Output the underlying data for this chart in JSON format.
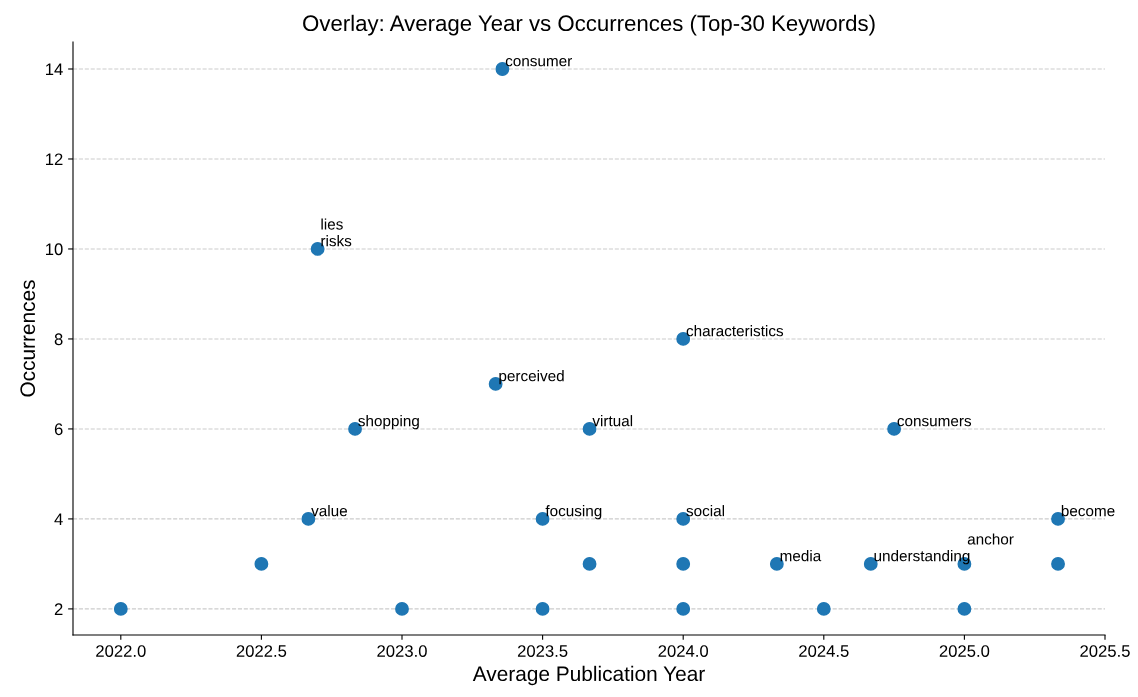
{
  "chart_data": {
    "type": "scatter",
    "title": "Overlay: Average Year vs Occurrences (Top-30 Keywords)",
    "xlabel": "Average Publication Year",
    "ylabel": "Occurrences",
    "x": [
      2022.0,
      2022.5,
      2022.667,
      2022.7,
      2022.833,
      2023.0,
      2023.357,
      2023.333,
      2023.5,
      2023.5,
      2023.667,
      2023.667,
      2024.0,
      2024.0,
      2024.0,
      2024.0,
      2024.333,
      2024.5,
      2024.667,
      2024.75,
      2025.0,
      2025.0,
      2025.333,
      2025.333
    ],
    "values": [
      2,
      3,
      4,
      10,
      6,
      2,
      14,
      7,
      4,
      2,
      6,
      3,
      8,
      4,
      3,
      2,
      3,
      2,
      3,
      6,
      3,
      2,
      4,
      3
    ],
    "color": "#1f77b4",
    "marker": "circle",
    "xlim": [
      2021.83,
      2025.5
    ],
    "xticks": [
      {
        "value": 2022.0,
        "label": "2022.0"
      },
      {
        "value": 2022.5,
        "label": "2022.5"
      },
      {
        "value": 2023.0,
        "label": "2023.0"
      },
      {
        "value": 2023.5,
        "label": "2023.5"
      },
      {
        "value": 2024.0,
        "label": "2024.0"
      },
      {
        "value": 2024.5,
        "label": "2024.5"
      },
      {
        "value": 2025.0,
        "label": "2025.0"
      },
      {
        "value": 2025.5,
        "label": "2025.5"
      }
    ],
    "ylim": [
      1.42,
      14.6
    ],
    "yticks": [
      2,
      4,
      6,
      8,
      10,
      12,
      14
    ],
    "grid": "y",
    "annotations": [
      {
        "text": "value",
        "x": 2022.667,
        "y": 4
      },
      {
        "text": "risks",
        "x": 2022.7,
        "y": 10
      },
      {
        "text": "lies",
        "x": 2022.7,
        "y": 10
      },
      {
        "text": "shopping",
        "x": 2022.833,
        "y": 6
      },
      {
        "text": "consumer",
        "x": 2023.357,
        "y": 14
      },
      {
        "text": "perceived",
        "x": 2023.333,
        "y": 7
      },
      {
        "text": "focusing",
        "x": 2023.5,
        "y": 4
      },
      {
        "text": "virtual",
        "x": 2023.667,
        "y": 6
      },
      {
        "text": "characteristics",
        "x": 2024.0,
        "y": 8
      },
      {
        "text": "social",
        "x": 2024.0,
        "y": 4
      },
      {
        "text": "media",
        "x": 2024.333,
        "y": 3
      },
      {
        "text": "understanding",
        "x": 2024.667,
        "y": 3
      },
      {
        "text": "consumers",
        "x": 2024.75,
        "y": 6
      },
      {
        "text": "anchor",
        "x": 2025.0,
        "y": 3
      },
      {
        "text": "become",
        "x": 2025.333,
        "y": 4
      }
    ]
  }
}
